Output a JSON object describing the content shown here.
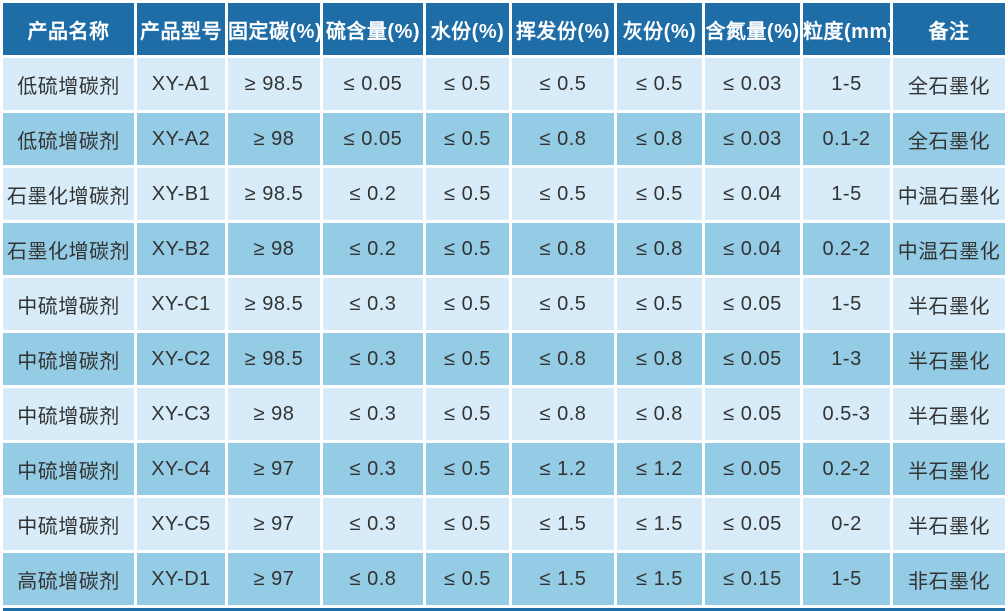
{
  "colors": {
    "header_bg": "#1e6da7",
    "row_light": "#d7ecf8",
    "row_medium": "#94cbe5",
    "gap": "#ffffff",
    "header_text": "#ffffff",
    "body_text": "#333333"
  },
  "table": {
    "columns": [
      {
        "key": "product-name",
        "label": "产品名称"
      },
      {
        "key": "model",
        "label": "产品型号"
      },
      {
        "key": "fixed-carbon",
        "label": "固定碳(%)"
      },
      {
        "key": "sulfur",
        "label": "硫含量(%)"
      },
      {
        "key": "moisture",
        "label": "水份(%)"
      },
      {
        "key": "volatile",
        "label": "挥发份(%)"
      },
      {
        "key": "ash",
        "label": "灰份(%)"
      },
      {
        "key": "nitrogen",
        "label": "含氮量(%)"
      },
      {
        "key": "granularity",
        "label": "粒度(mm)"
      },
      {
        "key": "remark",
        "label": "备注"
      }
    ],
    "rows": [
      [
        "低硫增碳剂",
        "XY-A1",
        "≥ 98.5",
        "≤ 0.05",
        "≤ 0.5",
        "≤ 0.5",
        "≤ 0.5",
        "≤ 0.03",
        "1-5",
        "全石墨化"
      ],
      [
        "低硫增碳剂",
        "XY-A2",
        "≥ 98",
        "≤ 0.05",
        "≤ 0.5",
        "≤ 0.8",
        "≤ 0.8",
        "≤ 0.03",
        "0.1-2",
        "全石墨化"
      ],
      [
        "石墨化增碳剂",
        "XY-B1",
        "≥ 98.5",
        "≤ 0.2",
        "≤ 0.5",
        "≤ 0.5",
        "≤ 0.5",
        "≤ 0.04",
        "1-5",
        "中温石墨化"
      ],
      [
        "石墨化增碳剂",
        "XY-B2",
        "≥ 98",
        "≤ 0.2",
        "≤ 0.5",
        "≤ 0.8",
        "≤ 0.8",
        "≤ 0.04",
        "0.2-2",
        "中温石墨化"
      ],
      [
        "中硫增碳剂",
        "XY-C1",
        "≥ 98.5",
        "≤ 0.3",
        "≤ 0.5",
        "≤ 0.5",
        "≤ 0.5",
        "≤ 0.05",
        "1-5",
        "半石墨化"
      ],
      [
        "中硫增碳剂",
        "XY-C2",
        "≥ 98.5",
        "≤ 0.3",
        "≤ 0.5",
        "≤ 0.8",
        "≤ 0.8",
        "≤ 0.05",
        "1-3",
        "半石墨化"
      ],
      [
        "中硫增碳剂",
        "XY-C3",
        "≥ 98",
        "≤ 0.3",
        "≤ 0.5",
        "≤ 0.8",
        "≤ 0.8",
        "≤ 0.05",
        "0.5-3",
        "半石墨化"
      ],
      [
        "中硫增碳剂",
        "XY-C4",
        "≥ 97",
        "≤ 0.3",
        "≤ 0.5",
        "≤ 1.2",
        "≤ 1.2",
        "≤ 0.05",
        "0.2-2",
        "半石墨化"
      ],
      [
        "中硫增碳剂",
        "XY-C5",
        "≥ 97",
        "≤ 0.3",
        "≤ 0.5",
        "≤ 1.5",
        "≤ 1.5",
        "≤ 0.05",
        "0-2",
        "半石墨化"
      ],
      [
        "高硫增碳剂",
        "XY-D1",
        "≥ 97",
        "≤ 0.8",
        "≤ 0.5",
        "≤ 1.5",
        "≤ 1.5",
        "≤ 0.15",
        "1-5",
        "非石墨化"
      ]
    ]
  }
}
